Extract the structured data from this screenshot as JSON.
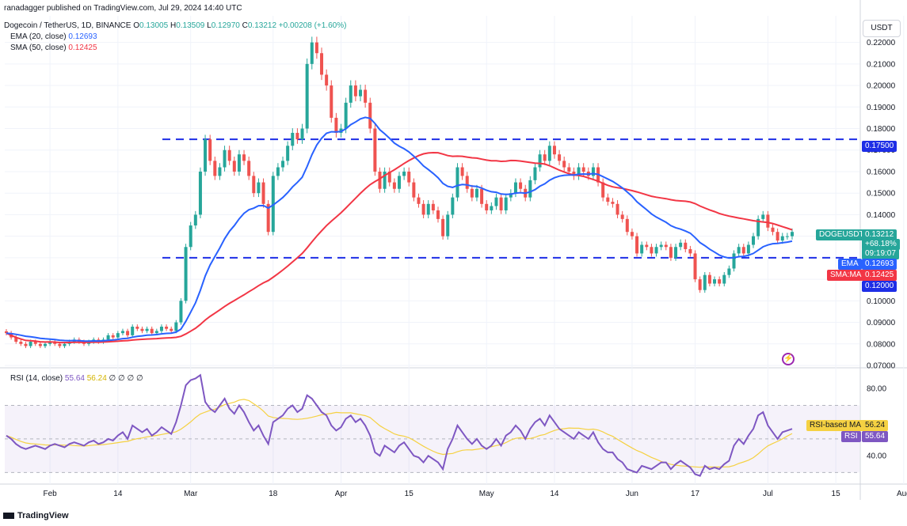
{
  "header": {
    "published": "ranadagger published on TradingView.com, Jul 29, 2024 14:40 UTC",
    "symbol_line": "Dogecoin / TetherUS, 1D, BINANCE",
    "ohlc": {
      "o_label": "O",
      "o": "0.13005",
      "h_label": "H",
      "h": "0.13509",
      "l_label": "L",
      "l": "0.12970",
      "c_label": "C",
      "c": "0.13212",
      "chg": "+0.00208 (+1.60%)"
    },
    "ema_line": {
      "label": "EMA (20, close)",
      "value": "0.12693"
    },
    "sma_line": {
      "label": "SMA (50, close)",
      "value": "0.12425"
    },
    "rsi_line": {
      "label": "RSI (14, close)",
      "v1": "55.64",
      "v2": "56.24",
      "rest": "∅ ∅ ∅ ∅"
    }
  },
  "unit_button": "USDT",
  "footer_logo": "TradingView",
  "colors": {
    "up": "#26a69a",
    "down": "#ef5350",
    "ema": "#2962ff",
    "sma": "#f23645",
    "level": "#1e2ee6",
    "rsi": "#7e57c2",
    "rsi_ma": "#f5d142",
    "grid": "#f0f3fa"
  },
  "labels": {
    "symbol_tag": "DOGEUSDT",
    "price": "0.13212",
    "pct": "+68.18%",
    "countdown": "09:19:07",
    "ema_tag": "EMA",
    "ema_val": "0.12693",
    "sma_tag": "SMA:MA",
    "sma_val": "0.12425",
    "level_top": "0.17500",
    "level_bottom": "0.12000",
    "rsi_ma_tag": "RSI-based MA",
    "rsi_ma_val": "56.24",
    "rsi_tag": "RSI",
    "rsi_val": "55.64"
  },
  "chart_data": {
    "type": "candlestick",
    "x_ticks": [
      "Feb",
      "14",
      "Mar",
      "18",
      "Apr",
      "15",
      "May",
      "14",
      "Jun",
      "17",
      "Jul",
      "15",
      "Aug"
    ],
    "y_ticks": [
      "0.22000",
      "0.21000",
      "0.20000",
      "0.19000",
      "0.18000",
      "0.17000",
      "0.16000",
      "0.15000",
      "0.14000",
      "0.13000",
      "0.12000",
      "0.11000",
      "0.10000",
      "0.09000",
      "0.08000",
      "0.07000"
    ],
    "ylim": [
      0.07,
      0.225
    ],
    "horizontal_levels": [
      0.175,
      0.12
    ],
    "ohlc_closes": [
      0.085,
      0.083,
      0.081,
      0.08,
      0.079,
      0.081,
      0.08,
      0.079,
      0.08,
      0.081,
      0.08,
      0.079,
      0.08,
      0.081,
      0.082,
      0.081,
      0.08,
      0.081,
      0.082,
      0.081,
      0.082,
      0.084,
      0.083,
      0.085,
      0.086,
      0.084,
      0.088,
      0.087,
      0.086,
      0.087,
      0.085,
      0.086,
      0.088,
      0.087,
      0.086,
      0.09,
      0.1,
      0.125,
      0.135,
      0.14,
      0.16,
      0.175,
      0.165,
      0.158,
      0.162,
      0.17,
      0.165,
      0.16,
      0.168,
      0.165,
      0.158,
      0.15,
      0.155,
      0.145,
      0.132,
      0.158,
      0.162,
      0.165,
      0.172,
      0.178,
      0.175,
      0.18,
      0.21,
      0.22,
      0.215,
      0.205,
      0.2,
      0.185,
      0.178,
      0.18,
      0.192,
      0.2,
      0.195,
      0.198,
      0.192,
      0.18,
      0.16,
      0.152,
      0.16,
      0.155,
      0.152,
      0.158,
      0.16,
      0.155,
      0.148,
      0.145,
      0.14,
      0.145,
      0.142,
      0.138,
      0.13,
      0.14,
      0.148,
      0.162,
      0.158,
      0.152,
      0.148,
      0.152,
      0.145,
      0.142,
      0.144,
      0.148,
      0.142,
      0.148,
      0.15,
      0.155,
      0.152,
      0.148,
      0.156,
      0.162,
      0.168,
      0.165,
      0.172,
      0.168,
      0.165,
      0.162,
      0.16,
      0.158,
      0.162,
      0.16,
      0.158,
      0.162,
      0.155,
      0.148,
      0.146,
      0.145,
      0.14,
      0.138,
      0.132,
      0.13,
      0.122,
      0.126,
      0.125,
      0.122,
      0.125,
      0.126,
      0.125,
      0.12,
      0.125,
      0.127,
      0.124,
      0.122,
      0.11,
      0.105,
      0.112,
      0.108,
      0.11,
      0.108,
      0.112,
      0.115,
      0.122,
      0.125,
      0.122,
      0.126,
      0.13,
      0.138,
      0.14,
      0.134,
      0.132,
      0.128,
      0.13,
      0.13,
      0.132
    ],
    "ema20": {
      "name": "EMA (20, close)",
      "last": 0.12693
    },
    "sma50": {
      "name": "SMA (50, close)",
      "last": 0.12425
    },
    "rsi": {
      "name": "RSI (14, close)",
      "ylim": [
        25,
        90
      ],
      "y_ticks": [
        "80.00",
        "40.00"
      ],
      "band": [
        70,
        30
      ],
      "values": [
        52,
        50,
        47,
        45,
        44,
        45,
        46,
        45,
        44,
        46,
        47,
        46,
        45,
        47,
        48,
        47,
        46,
        48,
        49,
        47,
        48,
        50,
        49,
        52,
        54,
        50,
        58,
        56,
        54,
        56,
        52,
        54,
        57,
        55,
        53,
        60,
        70,
        82,
        85,
        86,
        88,
        72,
        68,
        66,
        70,
        74,
        68,
        65,
        70,
        66,
        60,
        55,
        58,
        52,
        47,
        60,
        62,
        64,
        68,
        70,
        66,
        68,
        76,
        74,
        70,
        66,
        64,
        58,
        55,
        57,
        62,
        64,
        60,
        62,
        58,
        52,
        42,
        40,
        46,
        44,
        42,
        46,
        48,
        44,
        40,
        39,
        36,
        40,
        38,
        36,
        32,
        44,
        50,
        58,
        54,
        50,
        47,
        50,
        46,
        44,
        46,
        50,
        46,
        52,
        54,
        58,
        55,
        50,
        56,
        60,
        62,
        58,
        64,
        60,
        56,
        54,
        52,
        50,
        54,
        52,
        50,
        54,
        48,
        44,
        42,
        42,
        38,
        36,
        32,
        31,
        30,
        34,
        33,
        32,
        34,
        36,
        36,
        32,
        35,
        37,
        35,
        33,
        29,
        28,
        34,
        32,
        33,
        32,
        35,
        37,
        46,
        50,
        47,
        52,
        56,
        64,
        66,
        58,
        54,
        50,
        54,
        55,
        56
      ],
      "ma_last": 56.24,
      "last": 55.64
    }
  }
}
